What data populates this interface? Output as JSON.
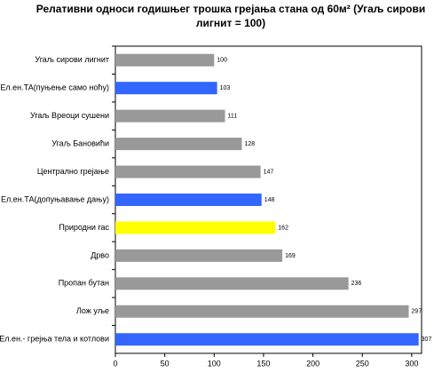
{
  "chart_data": {
    "type": "bar",
    "orientation": "horizontal",
    "title": "Релативни односи годишњег трошка грејања стана од 60м² (Угаљ сирови лигнит = 100)",
    "categories": [
      "Угаљ сирови лигнит",
      "Ел.ен.ТА(пуњење само ноћу)",
      "Угаљ Вреоци сушени",
      "Угаљ Бановићи",
      "Централно грејање",
      "Ел.ен.ТА(допуњавање дању)",
      "Природни гас",
      "Дрво",
      "Пропан бутан",
      "Лож уље",
      "Ел.ен.- грејња тела и котлови"
    ],
    "values": [
      100,
      103,
      111,
      128,
      147,
      148,
      162,
      169,
      236,
      297,
      307
    ],
    "colors": [
      "#999999",
      "#3366ff",
      "#999999",
      "#999999",
      "#999999",
      "#3366ff",
      "#ffff00",
      "#999999",
      "#999999",
      "#999999",
      "#3366ff"
    ],
    "xlim": [
      0,
      310
    ],
    "xticks": [
      0,
      50,
      100,
      150,
      200,
      250,
      300
    ],
    "grid": false
  }
}
